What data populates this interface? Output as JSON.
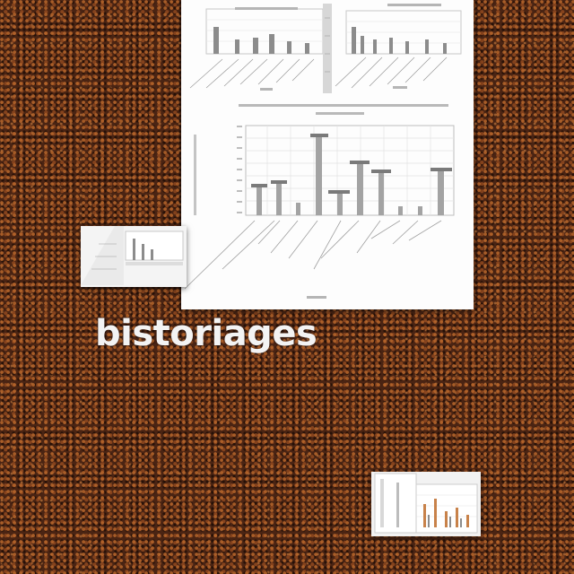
{
  "caption": {
    "text": "bistoriages"
  },
  "colors": {
    "paper": "#fdfdfd",
    "bar": "#8c8c8c",
    "bar_accent": "#c8824a",
    "caption": "#f3f3f3",
    "background": "#4a2413"
  }
}
